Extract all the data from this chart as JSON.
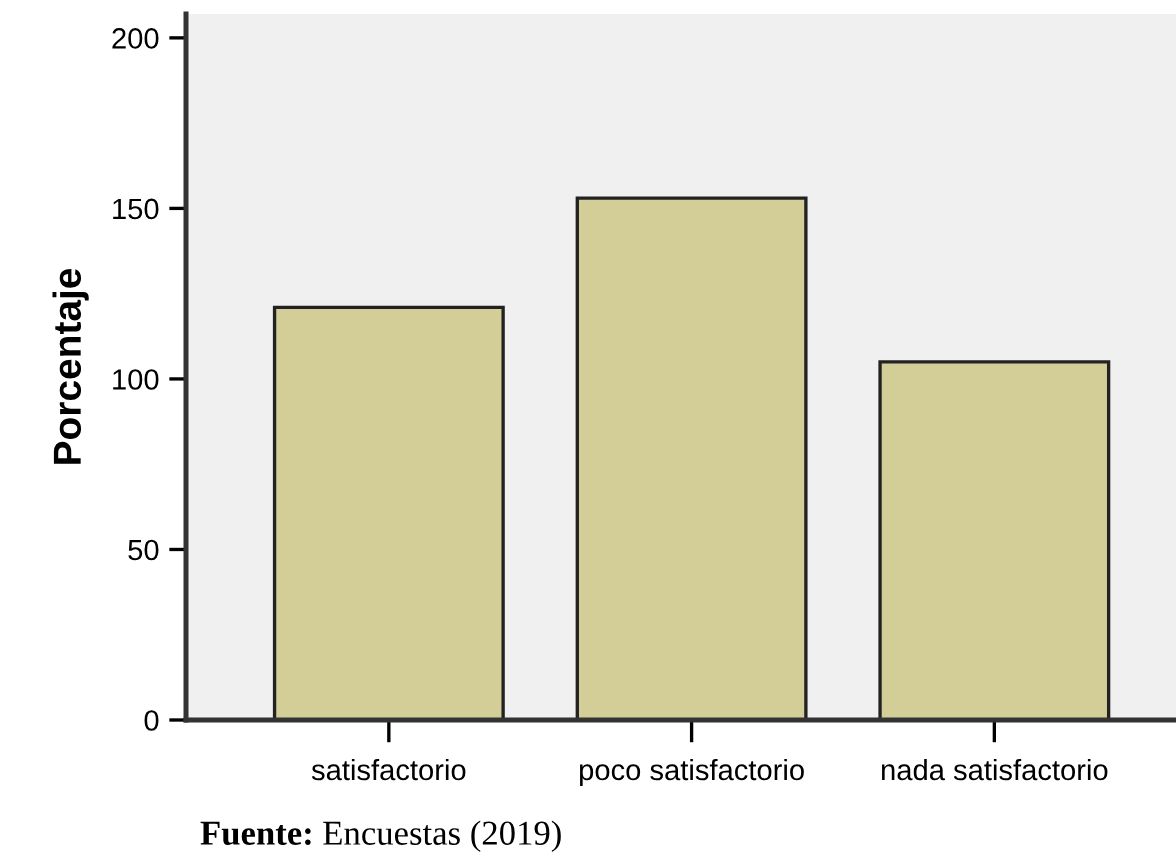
{
  "chart_data": {
    "type": "bar",
    "ylabel": "Porcentaje",
    "categories": [
      "satisfactorio",
      "poco satisfactorio",
      "nada satisfactorio"
    ],
    "values": [
      121,
      153,
      105
    ],
    "color": "#d3ce98",
    "ylim": [
      0,
      207
    ],
    "yticks": [
      0,
      50,
      100,
      150,
      200
    ],
    "grid": false,
    "legend": false,
    "annotations": [
      "Fuente: Encuestas (2019)"
    ]
  }
}
